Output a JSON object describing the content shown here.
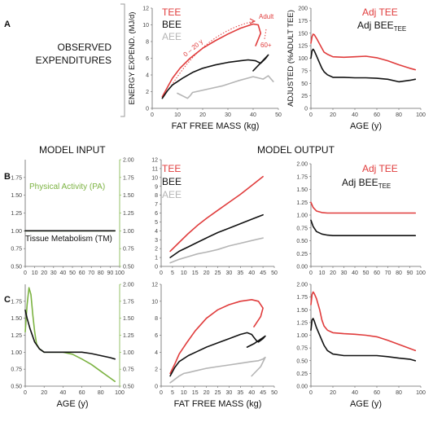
{
  "figure": {
    "rows": {
      "a": "A",
      "b": "B",
      "c": "C"
    },
    "section_observed": [
      "OBSERVED",
      "EXPENDITURES"
    ],
    "section_input": "MODEL INPUT",
    "section_output": "MODEL OUTPUT"
  },
  "colors": {
    "tee": "#e03c3c",
    "bee": "#111111",
    "aee": "#b5b5b5",
    "pa": "#7cb342",
    "tm": "#111111",
    "axis": "#666666"
  },
  "chart_data": [
    {
      "id": "A-left",
      "type": "line",
      "xlabel": "FAT FREE MASS (kg)",
      "ylabel": "ENERGY EXPEND. (MJ/d)",
      "xlim": [
        0,
        50
      ],
      "ylim": [
        0,
        12
      ],
      "xticks": [
        0,
        10,
        20,
        30,
        40,
        50
      ],
      "yticks": [
        0,
        2,
        4,
        6,
        8,
        10,
        12
      ],
      "legend": [
        "TEE",
        "BEE",
        "AEE"
      ],
      "annotations": [
        {
          "text": "Adult"
        },
        {
          "text": "0 – 20 y"
        },
        {
          "text": "60+"
        }
      ],
      "series": [
        {
          "name": "TEE",
          "color": "tee",
          "x": [
            4,
            6,
            8,
            11,
            15,
            20,
            25,
            30,
            35,
            40,
            42,
            43,
            41
          ],
          "y": [
            1.4,
            2.5,
            3.6,
            4.8,
            6,
            7.2,
            8.1,
            8.9,
            9.6,
            10.1,
            10,
            9,
            7.5
          ]
        },
        {
          "name": "BEE",
          "color": "bee",
          "x": [
            4,
            6,
            8,
            12,
            16,
            20,
            25,
            30,
            35,
            38,
            41,
            43,
            45,
            46,
            40
          ],
          "y": [
            1.2,
            2.1,
            2.8,
            3.6,
            4.3,
            4.8,
            5.2,
            5.5,
            5.7,
            5.8,
            5.7,
            5.4,
            6,
            6.4,
            4.5
          ]
        },
        {
          "name": "AEE",
          "color": "aee",
          "x": [
            10,
            14,
            15,
            16,
            22,
            28,
            34,
            40,
            44,
            46,
            48
          ],
          "y": [
            1.8,
            1.2,
            1.5,
            1.9,
            2.3,
            2.7,
            3.3,
            3.8,
            3.5,
            3.9,
            3.2
          ]
        }
      ]
    },
    {
      "id": "A-right",
      "type": "line",
      "xlabel": "AGE (y)",
      "ylabel": "ADJUSTED (%ADULT TEE)",
      "xlim": [
        0,
        100
      ],
      "ylim": [
        0,
        200
      ],
      "xticks": [
        0,
        20,
        40,
        60,
        80,
        100
      ],
      "yticks": [
        0,
        25,
        50,
        75,
        100,
        125,
        150,
        175,
        200
      ],
      "legend": [
        "Adj TEE",
        "Adj BEE"
      ],
      "series": [
        {
          "name": "Adj TEE",
          "color": "tee",
          "x": [
            0,
            1,
            2,
            3,
            5,
            8,
            10,
            12,
            15,
            20,
            30,
            40,
            50,
            60,
            70,
            80,
            90,
            95
          ],
          "y": [
            130,
            143,
            148,
            147,
            140,
            128,
            120,
            112,
            108,
            103,
            102,
            103,
            104,
            101,
            95,
            87,
            80,
            77
          ]
        },
        {
          "name": "Adj BEE",
          "color": "bee",
          "x": [
            0,
            1,
            2,
            3,
            5,
            8,
            10,
            12,
            15,
            20,
            30,
            40,
            50,
            60,
            70,
            80,
            90,
            95
          ],
          "y": [
            100,
            115,
            118,
            115,
            105,
            90,
            80,
            73,
            67,
            62,
            62,
            61,
            61,
            60,
            58,
            53,
            56,
            58
          ]
        }
      ]
    },
    {
      "id": "B-left",
      "type": "line",
      "xlabel": "",
      "ylabel": "",
      "xlim": [
        0,
        100
      ],
      "ylim": [
        0.5,
        2.0
      ],
      "ylim_right": [
        0.5,
        2.0
      ],
      "xticks": [
        0,
        10,
        20,
        30,
        40,
        50,
        60,
        70,
        80,
        90,
        100
      ],
      "yticks": [
        0.5,
        0.75,
        1.0,
        1.25,
        1.5,
        1.75
      ],
      "yticks_right": [
        0.5,
        0.75,
        1.0,
        1.25,
        1.5,
        1.75,
        2.0
      ],
      "legend": [
        "Physical Activity (PA)",
        "Tissue Metabolism (TM)"
      ],
      "series": [
        {
          "name": "Physical Activity (PA)",
          "color": "pa",
          "axis": "right",
          "x": [
            0,
            95
          ],
          "y": [
            1.0,
            1.0
          ]
        },
        {
          "name": "Tissue Metabolism (TM)",
          "color": "tm",
          "axis": "left",
          "x": [
            0,
            95
          ],
          "y": [
            1.0,
            1.0
          ]
        }
      ]
    },
    {
      "id": "B-mid",
      "type": "line",
      "xlabel": "",
      "ylabel": "",
      "xlim": [
        0,
        50
      ],
      "ylim": [
        0,
        12
      ],
      "xticks": [
        0,
        5,
        10,
        15,
        20,
        25,
        30,
        35,
        40,
        45,
        50
      ],
      "yticks": [
        0,
        1,
        2,
        3,
        4,
        5,
        6,
        7,
        8,
        9,
        10,
        11,
        12
      ],
      "legend": [
        "TEE",
        "BEE",
        "AEE"
      ],
      "series": [
        {
          "name": "TEE",
          "color": "tee",
          "x": [
            4,
            8,
            12,
            16,
            20,
            25,
            30,
            35,
            40,
            45
          ],
          "y": [
            1.7,
            2.7,
            3.7,
            4.6,
            5.4,
            6.3,
            7.2,
            8.1,
            9.1,
            10.1
          ]
        },
        {
          "name": "BEE",
          "color": "bee",
          "x": [
            4,
            8,
            12,
            16,
            20,
            25,
            30,
            35,
            40,
            45
          ],
          "y": [
            1.0,
            1.7,
            2.2,
            2.7,
            3.2,
            3.8,
            4.3,
            4.8,
            5.3,
            5.8
          ]
        },
        {
          "name": "AEE",
          "color": "aee",
          "x": [
            4,
            8,
            12,
            16,
            20,
            25,
            30,
            35,
            40,
            45
          ],
          "y": [
            0.4,
            0.8,
            1.1,
            1.4,
            1.6,
            1.9,
            2.3,
            2.6,
            2.9,
            3.2
          ]
        }
      ]
    },
    {
      "id": "B-right",
      "type": "line",
      "xlabel": "",
      "ylabel": "",
      "xlim": [
        0,
        100
      ],
      "ylim": [
        0,
        2.0
      ],
      "xticks": [
        0,
        10,
        20,
        30,
        40,
        50,
        60,
        70,
        80,
        90,
        100
      ],
      "yticks": [
        0.0,
        0.25,
        0.5,
        0.75,
        1.0,
        1.25,
        1.5,
        1.75,
        2.0
      ],
      "legend": [
        "Adj TEE",
        "Adj BEE"
      ],
      "series": [
        {
          "name": "Adj TEE",
          "color": "tee",
          "x": [
            0,
            2,
            5,
            10,
            15,
            20,
            40,
            60,
            80,
            95
          ],
          "y": [
            1.25,
            1.15,
            1.08,
            1.05,
            1.04,
            1.04,
            1.04,
            1.04,
            1.04,
            1.04
          ]
        },
        {
          "name": "Adj BEE",
          "color": "bee",
          "x": [
            0,
            2,
            5,
            10,
            15,
            20,
            40,
            60,
            80,
            95
          ],
          "y": [
            0.9,
            0.78,
            0.68,
            0.63,
            0.61,
            0.6,
            0.6,
            0.6,
            0.6,
            0.6
          ]
        }
      ]
    },
    {
      "id": "C-left",
      "type": "line",
      "xlabel": "AGE (y)",
      "ylabel": "",
      "xlim": [
        0,
        100
      ],
      "ylim": [
        0.5,
        2.0
      ],
      "ylim_right": [
        0.5,
        2.0
      ],
      "xticks": [
        0,
        20,
        40,
        60,
        80,
        100
      ],
      "yticks": [
        0.5,
        0.75,
        1.0,
        1.25,
        1.5,
        1.75
      ],
      "yticks_right": [
        0.5,
        0.75,
        1.0,
        1.25,
        1.5,
        1.75,
        2.0
      ],
      "series": [
        {
          "name": "PA",
          "color": "pa",
          "axis": "right",
          "x": [
            0,
            2,
            4,
            6,
            8,
            10,
            12,
            15,
            20,
            30,
            40,
            50,
            60,
            70,
            80,
            90,
            95
          ],
          "y": [
            1.3,
            1.7,
            1.95,
            1.85,
            1.55,
            1.3,
            1.12,
            1.05,
            1.0,
            1.0,
            1.0,
            0.97,
            0.9,
            0.82,
            0.72,
            0.62,
            0.57
          ]
        },
        {
          "name": "TM",
          "color": "tm",
          "axis": "left",
          "x": [
            0,
            2,
            5,
            10,
            15,
            20,
            30,
            40,
            50,
            60,
            70,
            80,
            90,
            95
          ],
          "y": [
            1.62,
            1.5,
            1.35,
            1.15,
            1.05,
            1.0,
            1.0,
            1.0,
            1.0,
            1.0,
            0.98,
            0.95,
            0.92,
            0.9
          ]
        }
      ]
    },
    {
      "id": "C-mid",
      "type": "line",
      "xlabel": "FAT FREE MASS (kg)",
      "ylabel": "",
      "xlim": [
        0,
        50
      ],
      "ylim": [
        0,
        12
      ],
      "xticks": [
        0,
        5,
        10,
        15,
        20,
        25,
        30,
        35,
        40,
        45,
        50
      ],
      "yticks": [
        0,
        2,
        4,
        6,
        8,
        10,
        12
      ],
      "series": [
        {
          "name": "TEE",
          "color": "tee",
          "x": [
            4,
            6,
            8,
            11,
            15,
            20,
            25,
            30,
            35,
            40,
            43,
            45,
            44,
            41
          ],
          "y": [
            1.5,
            2.6,
            3.8,
            5,
            6.5,
            8,
            9,
            9.6,
            10,
            10.2,
            10,
            9.2,
            8.2,
            7
          ]
        },
        {
          "name": "BEE",
          "color": "bee",
          "x": [
            4,
            6,
            8,
            12,
            16,
            20,
            25,
            30,
            35,
            38,
            40,
            42,
            43,
            45,
            46,
            41,
            38
          ],
          "y": [
            1.2,
            2.2,
            2.9,
            3.6,
            4.1,
            4.6,
            5.1,
            5.6,
            6.1,
            6.3,
            6.1,
            5.4,
            5.2,
            5.6,
            5.9,
            5,
            4.6
          ]
        },
        {
          "name": "AEE",
          "color": "aee",
          "x": [
            4,
            6,
            8,
            10,
            12,
            15,
            20,
            25,
            30,
            35,
            40,
            43,
            45,
            46,
            44,
            40
          ],
          "y": [
            0.4,
            0.8,
            1.2,
            1.5,
            1.6,
            1.8,
            2.1,
            2.3,
            2.5,
            2.7,
            2.9,
            3.0,
            3.2,
            3.4,
            2.3,
            1.2
          ]
        }
      ]
    },
    {
      "id": "C-right",
      "type": "line",
      "xlabel": "AGE (y)",
      "ylabel": "",
      "xlim": [
        0,
        100
      ],
      "ylim": [
        0,
        2.0
      ],
      "xticks": [
        0,
        20,
        40,
        60,
        80,
        100
      ],
      "yticks": [
        0.0,
        0.25,
        0.5,
        0.75,
        1.0,
        1.25,
        1.5,
        1.75,
        2.0
      ],
      "series": [
        {
          "name": "Adj TEE",
          "color": "tee",
          "x": [
            0,
            1,
            2,
            3,
            5,
            8,
            10,
            12,
            15,
            20,
            30,
            40,
            50,
            60,
            70,
            80,
            90,
            95
          ],
          "y": [
            1.6,
            1.8,
            1.85,
            1.82,
            1.72,
            1.5,
            1.3,
            1.18,
            1.1,
            1.05,
            1.03,
            1.02,
            1.0,
            0.97,
            0.9,
            0.82,
            0.74,
            0.7
          ]
        },
        {
          "name": "Adj BEE",
          "color": "bee",
          "x": [
            0,
            1,
            2,
            3,
            5,
            8,
            10,
            12,
            15,
            20,
            30,
            40,
            50,
            60,
            70,
            80,
            90,
            95
          ],
          "y": [
            1.1,
            1.3,
            1.33,
            1.28,
            1.15,
            1.0,
            0.9,
            0.8,
            0.7,
            0.63,
            0.6,
            0.6,
            0.6,
            0.6,
            0.58,
            0.55,
            0.53,
            0.5
          ]
        }
      ]
    }
  ]
}
